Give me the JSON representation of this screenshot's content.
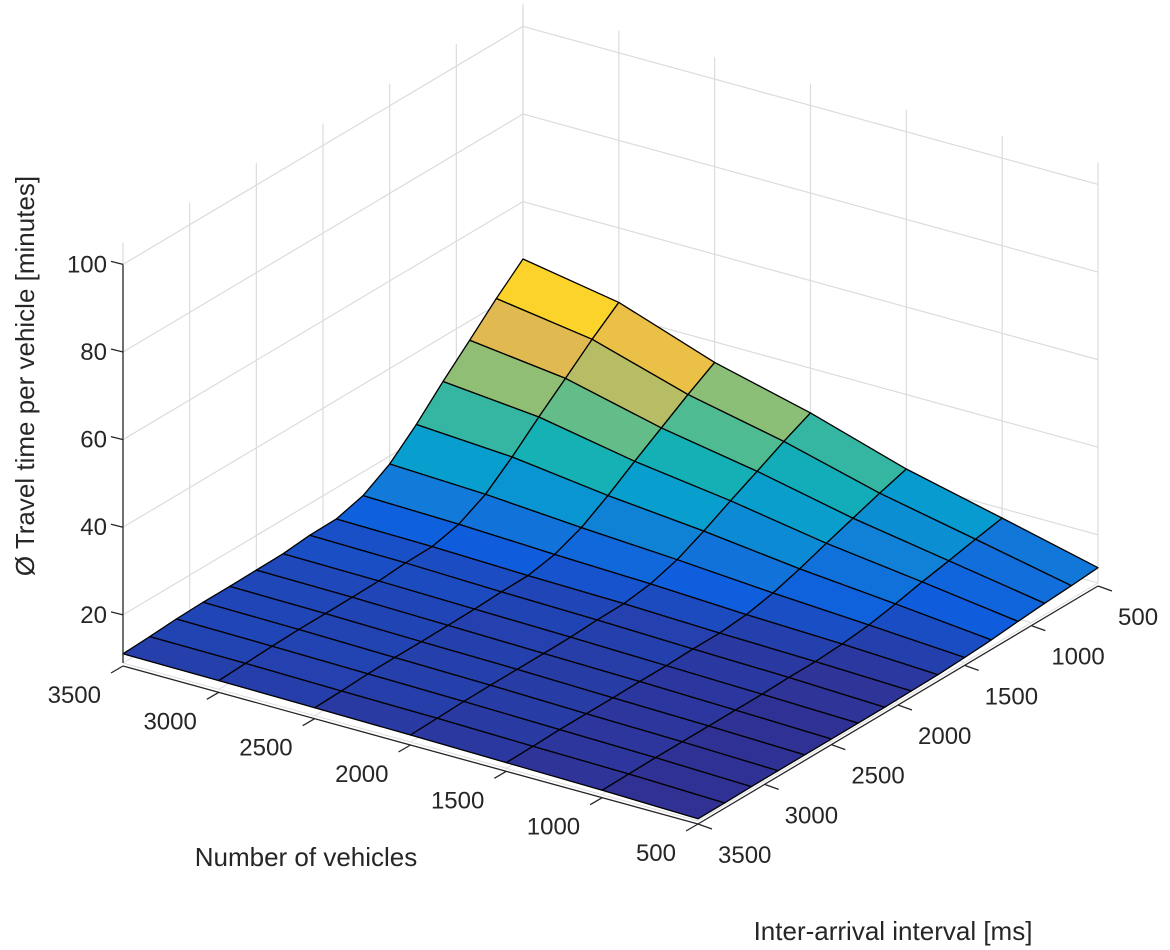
{
  "chart_data": {
    "type": "surface3d",
    "title": "",
    "xlabel": "Inter-arrival interval [ms]",
    "ylabel": "Number of vehicles",
    "zlabel": "Ø Travel time per vehicle [minutes]",
    "x_ticks": [
      500,
      1000,
      1500,
      2000,
      2500,
      3000,
      3500
    ],
    "y_ticks": [
      3500,
      3000,
      2500,
      2000,
      1500,
      1000,
      500
    ],
    "z_ticks": [
      20,
      40,
      60,
      80,
      100
    ],
    "xlim": [
      500,
      3500
    ],
    "ylim": [
      500,
      3500
    ],
    "zlim": [
      9,
      105
    ],
    "grid": true,
    "colormap": "parula",
    "interval_ms": [
      500,
      700,
      900,
      1100,
      1300,
      1500,
      1700,
      1900,
      2100,
      2300,
      2500,
      2700,
      2900,
      3100,
      3300,
      3500
    ],
    "vehicles": [
      500,
      1000,
      1500,
      2000,
      2500,
      3000,
      3500
    ],
    "z_minutes": [
      [
        12.5,
        12.0,
        11.6,
        11.1,
        10.5,
        10.1,
        9.8,
        9.7,
        9.6,
        9.6,
        9.6,
        9.6,
        9.6,
        9.6,
        9.5,
        9.5
      ],
      [
        17.8,
        16.6,
        15.3,
        14.1,
        12.7,
        11.5,
        10.8,
        10.4,
        10.4,
        10.2,
        10.2,
        10.2,
        10.2,
        10.2,
        10.1,
        10.0
      ],
      [
        23.0,
        21.1,
        19.0,
        16.9,
        14.7,
        12.8,
        11.5,
        10.9,
        10.9,
        10.7,
        10.7,
        10.6,
        10.6,
        10.6,
        10.4,
        10.3
      ],
      [
        29.8,
        26.9,
        23.7,
        20.6,
        17.3,
        14.4,
        12.5,
        11.6,
        11.5,
        11.2,
        11.1,
        11.1,
        11.1,
        11.0,
        10.8,
        10.6
      ],
      [
        35.3,
        31.6,
        27.6,
        23.6,
        19.4,
        15.7,
        13.2,
        12.0,
        11.9,
        11.6,
        11.5,
        11.4,
        11.4,
        11.3,
        11.0,
        10.8
      ],
      [
        43.0,
        38.2,
        32.9,
        27.7,
        22.2,
        17.3,
        14.1,
        12.6,
        12.5,
        12.0,
        11.9,
        11.8,
        11.8,
        11.6,
        11.3,
        11.0
      ],
      [
        46.9,
        41.5,
        35.6,
        29.8,
        23.6,
        18.2,
        14.6,
        12.9,
        12.8,
        12.2,
        12.1,
        12.0,
        12.0,
        11.8,
        11.4,
        11.1
      ]
    ]
  },
  "labels": {
    "zlabel": "Ø Travel time per vehicle [minutes]",
    "ylabel": "Number of vehicles",
    "xlabel": "Inter-arrival interval [ms]"
  },
  "colors": {
    "grid": "#dcdcdc",
    "axis": "#262626",
    "edge": "#000000",
    "background": "#ffffff"
  }
}
